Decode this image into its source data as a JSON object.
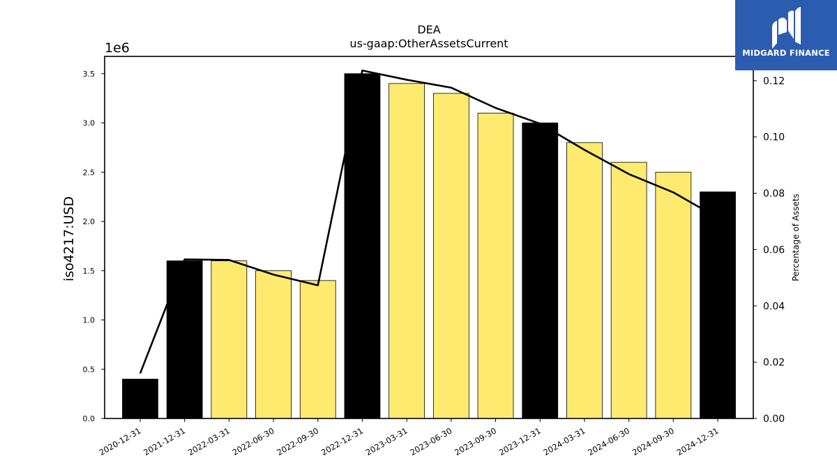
{
  "chart_data": {
    "type": "bar",
    "title": "DEA",
    "subtitle": "us-gaap:OtherAssetsCurrent",
    "ylabel": "iso4217:USD",
    "y_scale_label": "1e6",
    "y2label": "Percentage of Assets",
    "ylim": [
      0,
      3.675
    ],
    "y2lim": [
      0,
      0.1286
    ],
    "yticks": [
      "0.0",
      "0.5",
      "1.0",
      "1.5",
      "2.0",
      "2.5",
      "3.0",
      "3.5"
    ],
    "y2ticks": [
      "0.00",
      "0.02",
      "0.04",
      "0.06",
      "0.08",
      "0.10",
      "0.12"
    ],
    "grid": false,
    "categories": [
      "2020-12-31",
      "2021-12-31",
      "2022-03-31",
      "2022-06-30",
      "2022-09-30",
      "2022-12-31",
      "2023-03-31",
      "2023-06-30",
      "2023-09-30",
      "2023-12-31",
      "2024-03-31",
      "2024-06-30",
      "2024-09-30",
      "2024-12-31"
    ],
    "values": [
      0.4,
      1.6,
      1.6,
      1.5,
      1.4,
      3.5,
      3.4,
      3.3,
      3.1,
      3.0,
      2.8,
      2.6,
      2.5,
      2.3
    ],
    "annual": [
      true,
      true,
      false,
      false,
      false,
      true,
      false,
      false,
      false,
      true,
      false,
      false,
      false,
      true
    ],
    "colors": {
      "annual": "#000000",
      "quarterly": "#fdea6f",
      "line": "#000000"
    },
    "line_values": [
      0.016,
      0.0565,
      0.0563,
      0.0511,
      0.0473,
      0.1236,
      0.1203,
      0.1175,
      0.1103,
      0.1047,
      0.0954,
      0.0868,
      0.0803,
      0.0713
    ]
  },
  "logo": {
    "text": "MIDGARD FINANCE",
    "color": "#2c5cb0"
  }
}
